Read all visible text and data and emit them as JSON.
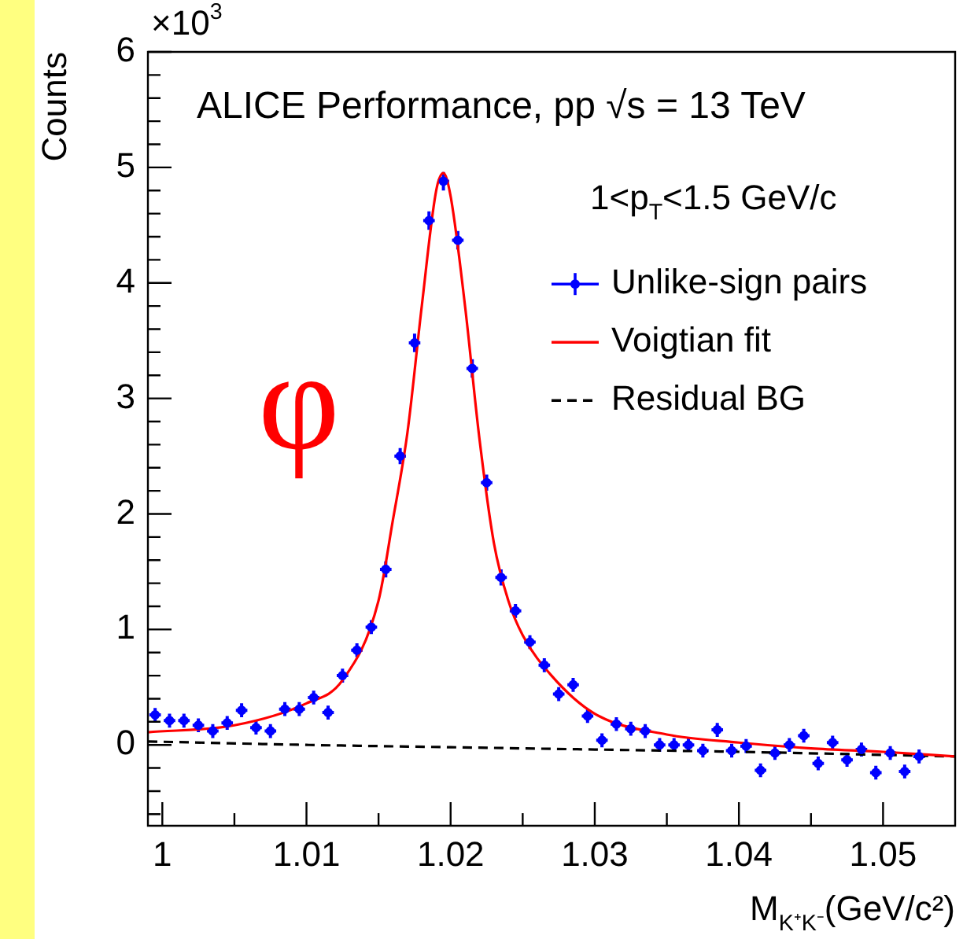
{
  "chart_data": {
    "type": "scatter",
    "xlabel": "M$_{K⁺K⁻}$(GeV/c²)",
    "ylabel": "Counts",
    "annotations": [
      "ALICE Performance, pp √s = 13 TeV",
      "1<p$_{T}$<1.5 GeV/c",
      "φ",
      "×10$^{3}$"
    ],
    "xlim": [
      0.999,
      1.055
    ],
    "xticks": [
      1,
      {
        "value": 1.005,
        "label": null
      },
      1.01,
      {
        "value": 1.015,
        "label": null
      },
      1.02,
      {
        "value": 1.025,
        "label": null
      },
      1.03,
      {
        "value": 1.035,
        "label": null
      },
      1.04,
      {
        "value": 1.045,
        "label": null
      },
      1.05
    ],
    "ylim": [
      -0.7,
      6
    ],
    "yticks": [
      {
        "value": -0.6,
        "label": null
      },
      {
        "value": -0.4,
        "label": null
      },
      {
        "value": -0.2,
        "label": null
      },
      0,
      {
        "value": 0.2,
        "label": null
      },
      {
        "value": 0.4,
        "label": null
      },
      {
        "value": 0.6,
        "label": null
      },
      {
        "value": 0.8,
        "label": null
      },
      1,
      {
        "value": 1.2,
        "label": null
      },
      {
        "value": 1.4,
        "label": null
      },
      {
        "value": 1.6,
        "label": null
      },
      {
        "value": 1.8,
        "label": null
      },
      2,
      {
        "value": 2.2,
        "label": null
      },
      {
        "value": 2.4,
        "label": null
      },
      {
        "value": 2.6,
        "label": null
      },
      {
        "value": 2.8,
        "label": null
      },
      3,
      {
        "value": 3.2,
        "label": null
      },
      {
        "value": 3.4,
        "label": null
      },
      {
        "value": 3.6,
        "label": null
      },
      {
        "value": 3.8,
        "label": null
      },
      4,
      {
        "value": 4.2,
        "label": null
      },
      {
        "value": 4.4,
        "label": null
      },
      {
        "value": 4.6,
        "label": null
      },
      {
        "value": 4.8,
        "label": null
      },
      5,
      {
        "value": 5.2,
        "label": null
      },
      {
        "value": 5.4,
        "label": null
      },
      {
        "value": 5.6,
        "label": null
      },
      {
        "value": 5.8,
        "label": null
      },
      6
    ],
    "grid": false,
    "legend": "right",
    "series": [
      {
        "name": "Unlike-sign pairs",
        "type": "scatter",
        "marker": "circle",
        "color": "#0000ff",
        "x": [
          0.9995,
          1.0005,
          1.0015,
          1.0025,
          1.0035,
          1.0045,
          1.0055,
          1.0065,
          1.0075,
          1.0085,
          1.0095,
          1.0105,
          1.0115,
          1.0125,
          1.0135,
          1.0145,
          1.0155,
          1.0165,
          1.0175,
          1.0185,
          1.0195,
          1.0205,
          1.0215,
          1.0225,
          1.0235,
          1.0245,
          1.0255,
          1.0265,
          1.0275,
          1.0285,
          1.0295,
          1.0305,
          1.0315,
          1.0325,
          1.0335,
          1.0345,
          1.0355,
          1.0365,
          1.0375,
          1.0385,
          1.0395,
          1.0405,
          1.0415,
          1.0425,
          1.0435,
          1.0445,
          1.0455,
          1.0465,
          1.0475,
          1.0485,
          1.0495,
          1.0505,
          1.0515,
          1.0525
        ],
        "values": [
          0.26,
          0.21,
          0.21,
          0.17,
          0.12,
          0.19,
          0.3,
          0.15,
          0.12,
          0.31,
          0.31,
          0.41,
          0.28,
          0.6,
          0.82,
          1.02,
          1.52,
          2.5,
          3.48,
          4.54,
          4.88,
          4.37,
          3.26,
          2.27,
          1.45,
          1.16,
          0.89,
          0.69,
          0.44,
          0.52,
          0.25,
          0.04,
          0.18,
          0.14,
          0.12,
          0,
          0,
          0,
          -0.05,
          0.13,
          -0.05,
          -0.01,
          -0.22,
          -0.07,
          0,
          0.08,
          -0.16,
          0.02,
          -0.13,
          -0.04,
          -0.24,
          -0.07,
          -0.23,
          -0.1
        ],
        "errors": [
          0.06,
          0.06,
          0.06,
          0.06,
          0.06,
          0.06,
          0.06,
          0.06,
          0.06,
          0.06,
          0.06,
          0.06,
          0.06,
          0.06,
          0.06,
          0.06,
          0.07,
          0.07,
          0.08,
          0.08,
          0.08,
          0.08,
          0.08,
          0.07,
          0.07,
          0.06,
          0.06,
          0.06,
          0.06,
          0.06,
          0.06,
          0.06,
          0.06,
          0.06,
          0.06,
          0.06,
          0.06,
          0.06,
          0.06,
          0.06,
          0.06,
          0.06,
          0.06,
          0.06,
          0.06,
          0.06,
          0.06,
          0.06,
          0.06,
          0.06,
          0.06,
          0.06,
          0.06,
          0.06
        ],
        "xerrors": [
          0.0004,
          0.0004,
          0.0004,
          0.0004,
          0.0004,
          0.0004,
          0.0004,
          0.0004,
          0.0004,
          0.0004,
          0.0004,
          0.0004,
          0.0004,
          0.0004,
          0.0004,
          0.0004,
          0.0004,
          0.0004,
          0.0004,
          0.0004,
          0.0004,
          0.0004,
          0.0004,
          0.0004,
          0.0004,
          0.0004,
          0.0004,
          0.0004,
          0.0004,
          0.0004,
          0.0004,
          0.0004,
          0.0004,
          0.0004,
          0.0004,
          0.0004,
          0.0004,
          0.0004,
          0.0004,
          0.0004,
          0.0004,
          0.0004,
          0.0004,
          0.0004,
          0.0004,
          0.0004,
          0.0004,
          0.0004,
          0.0004,
          0.0004,
          0.0004,
          0.0004,
          0.0004,
          0.0004
        ]
      },
      {
        "name": "Voigtian fit",
        "type": "line",
        "marker": "none",
        "color": "#ff0000",
        "line_style": "solid",
        "x": [
          0.999,
          1.005,
          1.01,
          1.0125,
          1.015,
          1.016,
          1.017,
          1.018,
          1.019,
          1.0195,
          1.02,
          1.021,
          1.022,
          1.023,
          1.024,
          1.025,
          1.027,
          1.03,
          1.035,
          1.04,
          1.045,
          1.05,
          1.055
        ],
        "values": [
          0.11,
          0.17,
          0.36,
          0.56,
          1.25,
          1.95,
          2.7,
          3.8,
          4.8,
          4.95,
          4.75,
          3.8,
          2.65,
          1.75,
          1.25,
          0.95,
          0.6,
          0.27,
          0.09,
          0.02,
          -0.03,
          -0.06,
          -0.1
        ]
      },
      {
        "name": "Residual BG",
        "type": "line",
        "marker": "none",
        "color": "#000000",
        "line_style": "dashed",
        "x": [
          0.999,
          1.01,
          1.02,
          1.03,
          1.04,
          1.055
        ],
        "values": [
          0.03,
          0,
          -0.02,
          -0.04,
          -0.06,
          -0.1
        ]
      }
    ]
  }
}
